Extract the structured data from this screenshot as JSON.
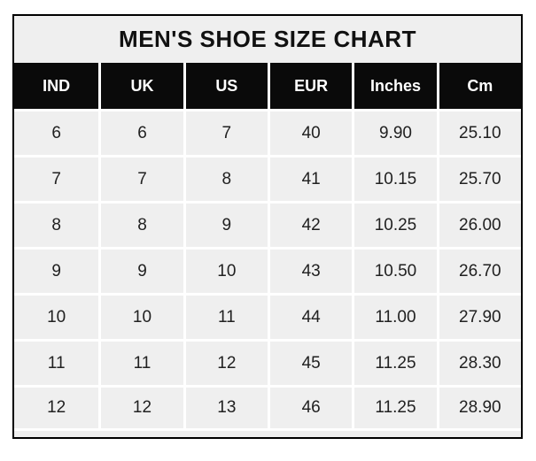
{
  "title": "MEN'S SHOE SIZE CHART",
  "chart_data": {
    "type": "table",
    "title": "MEN'S SHOE SIZE CHART",
    "columns": [
      "IND",
      "UK",
      "US",
      "EUR",
      "Inches",
      "Cm"
    ],
    "rows": [
      [
        "6",
        "6",
        "7",
        "40",
        "9.90",
        "25.10"
      ],
      [
        "7",
        "7",
        "8",
        "41",
        "10.15",
        "25.70"
      ],
      [
        "8",
        "8",
        "9",
        "42",
        "10.25",
        "26.00"
      ],
      [
        "9",
        "9",
        "10",
        "43",
        "10.50",
        "26.70"
      ],
      [
        "10",
        "10",
        "11",
        "44",
        "11.00",
        "27.90"
      ],
      [
        "11",
        "11",
        "12",
        "45",
        "11.25",
        "28.30"
      ],
      [
        "12",
        "12",
        "13",
        "46",
        "11.25",
        "28.90"
      ]
    ]
  },
  "colors": {
    "page_bg": "#ffffff",
    "border": "#000000",
    "title_bg": "#efefef",
    "title_text": "#111111",
    "header_bg": "#0a0a0a",
    "header_text": "#ffffff",
    "cell_bg": "#efefef",
    "cell_text": "#212121",
    "grid": "#ffffff"
  }
}
